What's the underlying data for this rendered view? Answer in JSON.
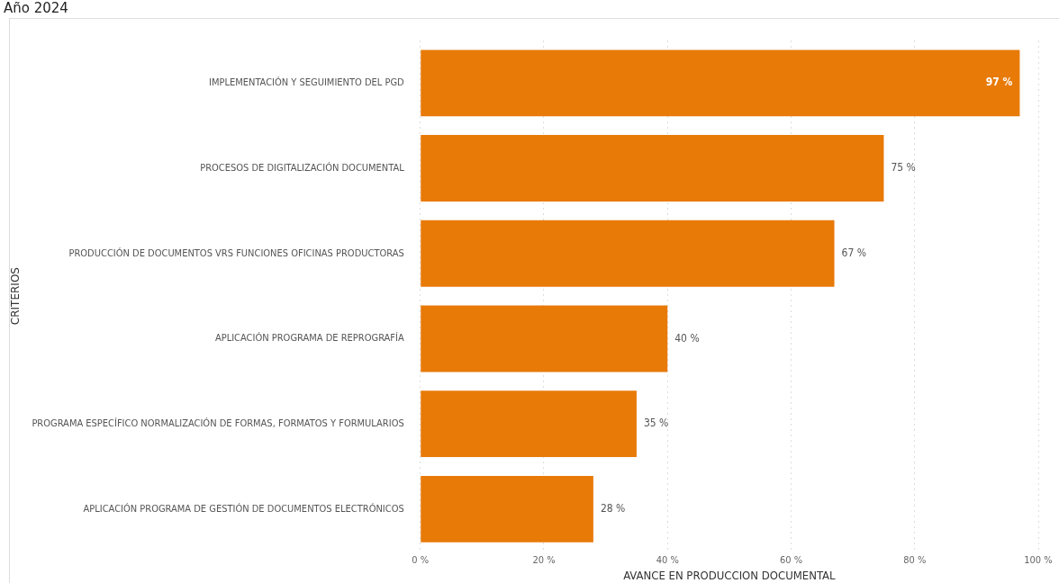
{
  "chart_data": {
    "type": "bar",
    "orientation": "horizontal",
    "title": "Año 2024",
    "xlabel": "AVANCE EN PRODUCCION DOCUMENTAL",
    "ylabel": "CRITERIOS",
    "categories": [
      "IMPLEMENTACIÓN Y SEGUIMIENTO DEL PGD",
      "PROCESOS DE DIGITALIZACIÓN DOCUMENTAL",
      "PRODUCCIÓN DE DOCUMENTOS VRS FUNCIONES OFICINAS PRODUCTORAS",
      "APLICACIÓN PROGRAMA DE REPROGRAFÍA",
      "PROGRAMA ESPECÍFICO NORMALIZACIÓN DE FORMAS, FORMATOS Y FORMULARIOS",
      "APLICACIÓN PROGRAMA DE GESTIÓN DE DOCUMENTOS ELECTRÓNICOS"
    ],
    "values": [
      97,
      75,
      67,
      40,
      35,
      28
    ],
    "value_labels": [
      "97 %",
      "75 %",
      "67 %",
      "40 %",
      "35 %",
      "28 %"
    ],
    "color": "#e87a08",
    "xlim": [
      0,
      100
    ],
    "xticks": [
      {
        "value": 0,
        "label": "0 %"
      },
      {
        "value": 20,
        "label": "20 %"
      },
      {
        "value": 40,
        "label": "40 %"
      },
      {
        "value": 60,
        "label": "60 %"
      },
      {
        "value": 80,
        "label": "80 %"
      },
      {
        "value": 100,
        "label": "100 %"
      }
    ],
    "grid": "x"
  }
}
